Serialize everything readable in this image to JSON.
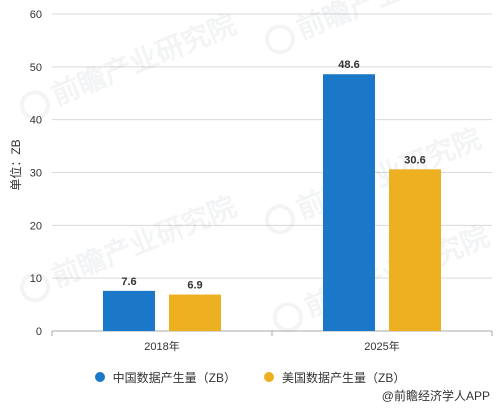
{
  "chart_data": {
    "type": "bar",
    "categories": [
      "2018年",
      "2025年"
    ],
    "series": [
      {
        "name": "中国数据产生量（ZB）",
        "values": [
          7.6,
          48.6
        ],
        "color": "#1b78c8"
      },
      {
        "name": "美国数据产生量（ZB）",
        "values": [
          6.9,
          30.6
        ],
        "color": "#edb020"
      }
    ],
    "ylabel": "单位：ZB",
    "ylim": [
      0,
      60
    ],
    "yticks": [
      0,
      10,
      20,
      30,
      40,
      50,
      60
    ],
    "grid": true,
    "legend_position": "bottom"
  },
  "watermark": {
    "text": "前瞻产业研究院"
  },
  "source": "@前瞻经济学人APP"
}
